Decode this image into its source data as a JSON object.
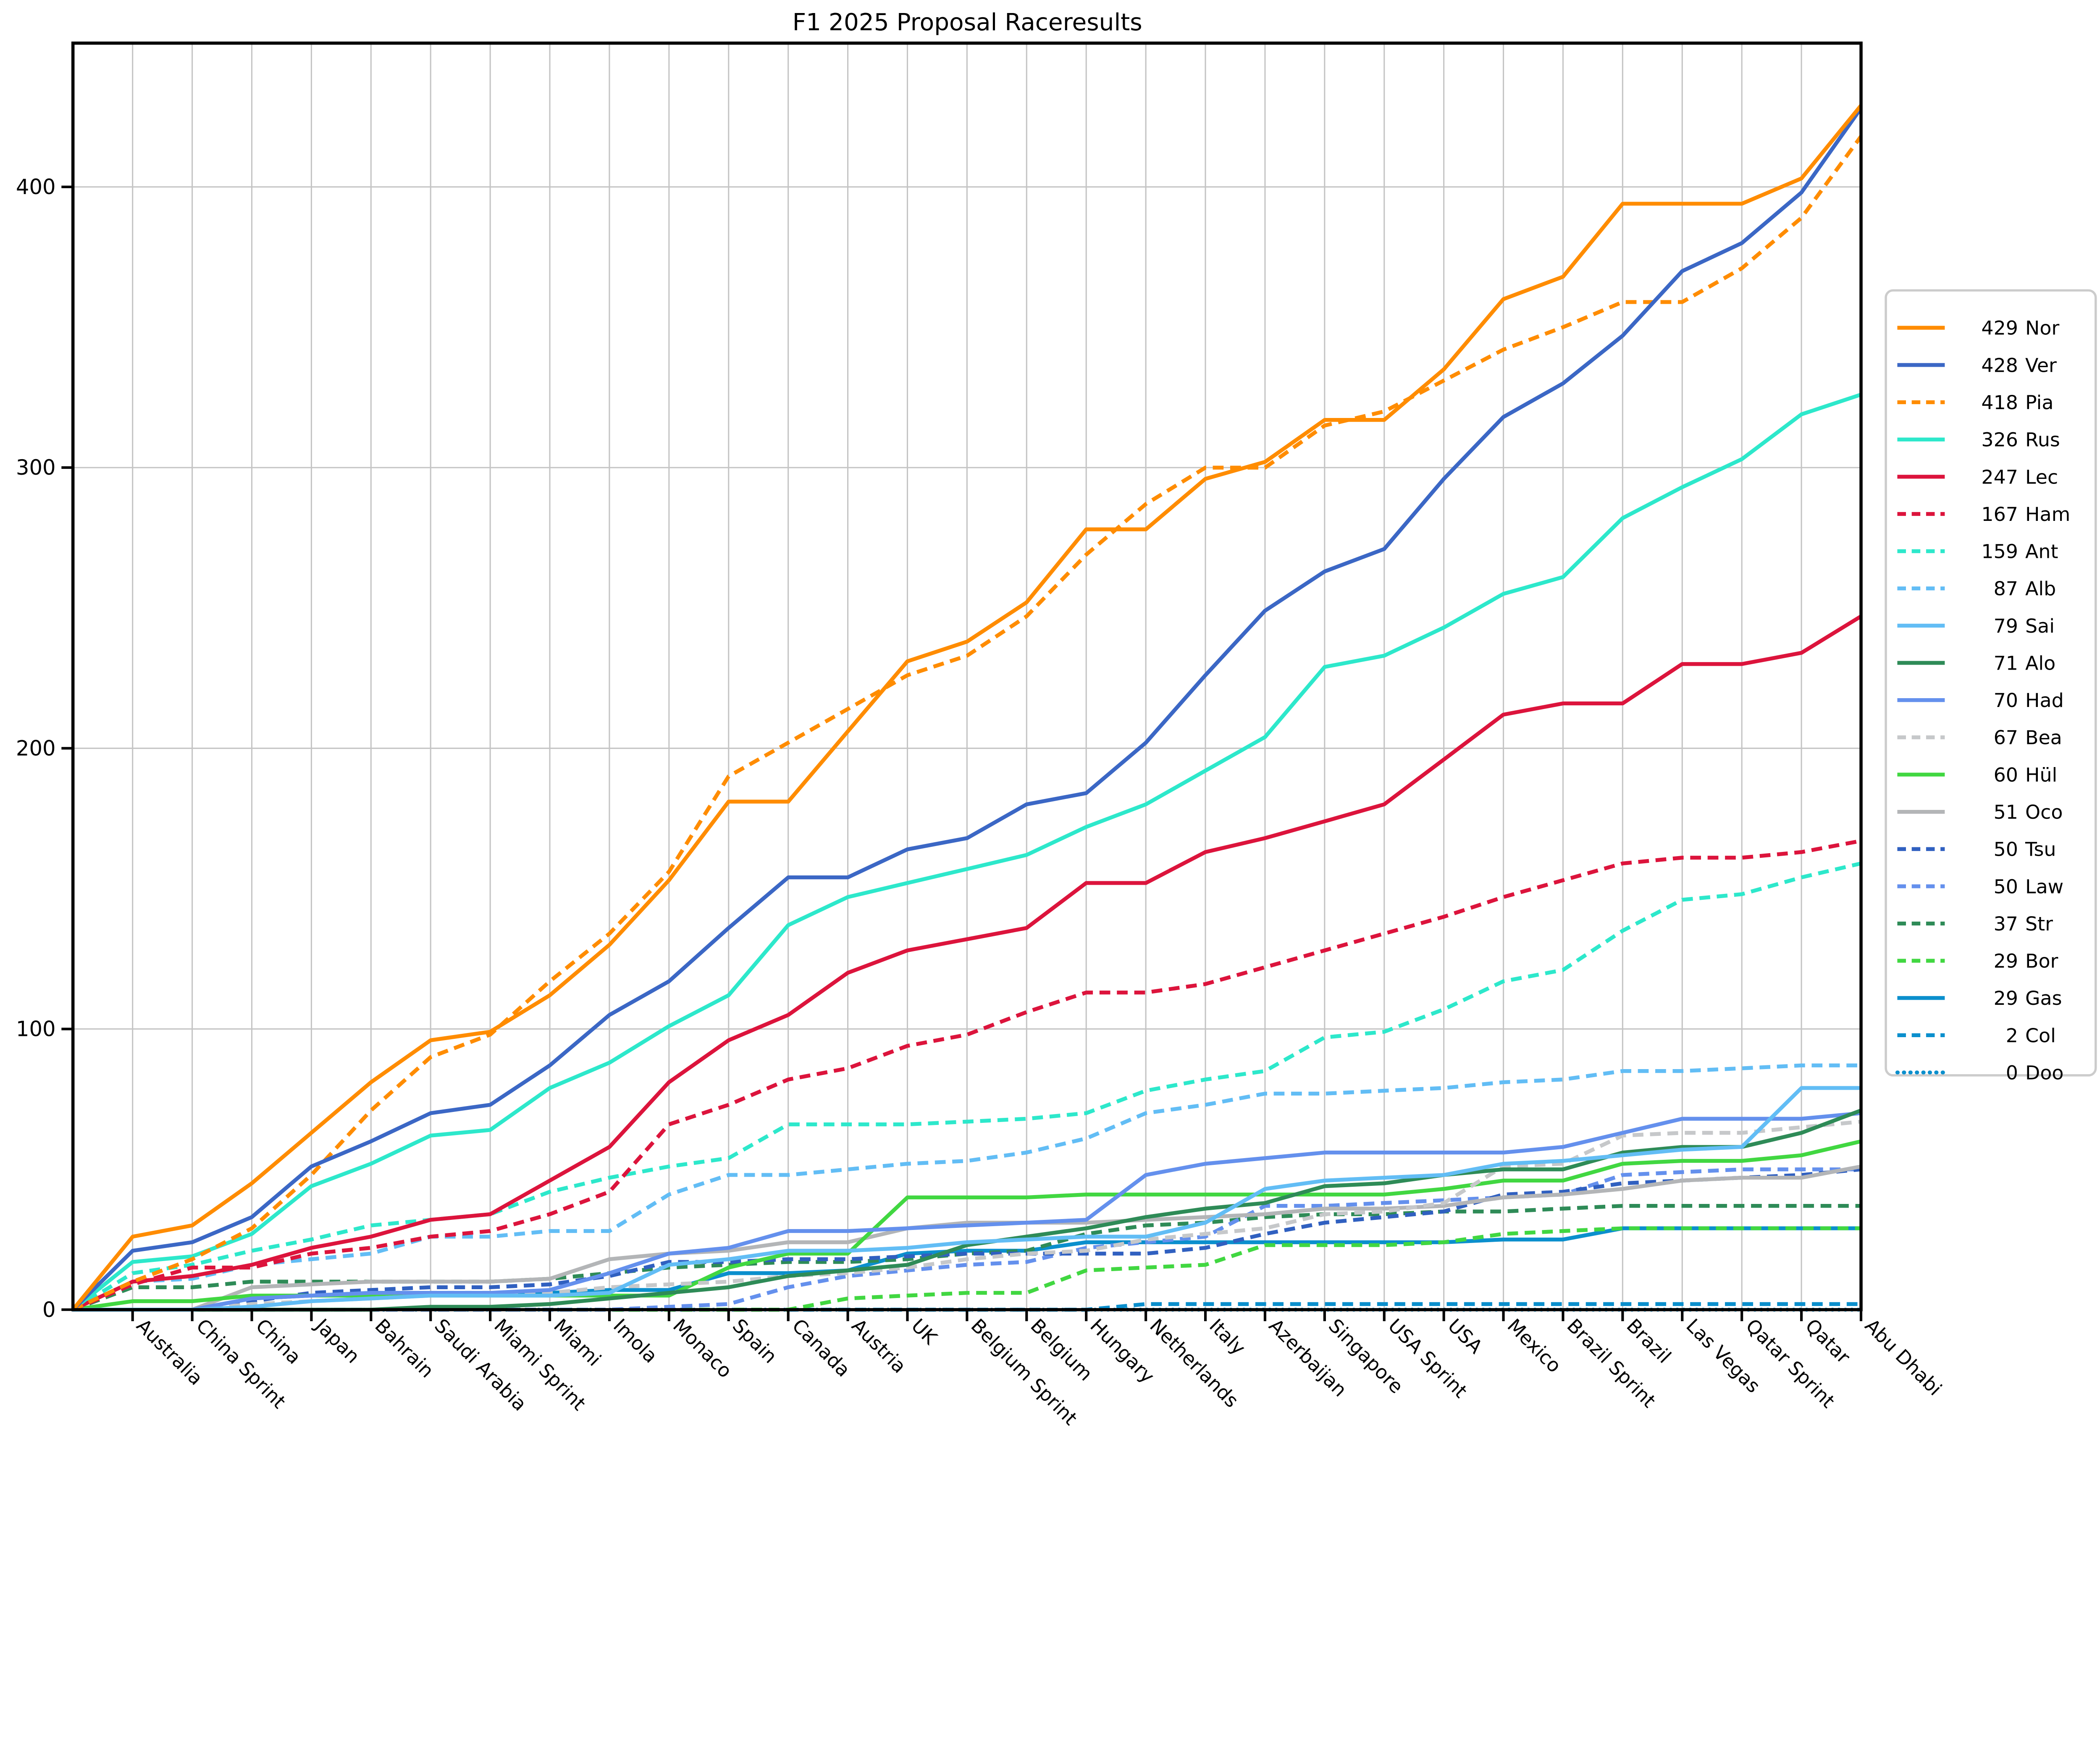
{
  "title": "F1 2025 Proposal Raceresults",
  "chart_data": {
    "type": "line",
    "title": "F1 2025 Proposal Raceresults",
    "xlabel": "",
    "ylabel": "",
    "ylim": [
      0,
      451
    ],
    "yticks": [
      0,
      100,
      200,
      300,
      400
    ],
    "grid": true,
    "legend_position": "center right",
    "x_tick_rotation": 45,
    "categories": [
      "Australia",
      "China Sprint",
      "China",
      "Japan",
      "Bahrain",
      "Saudi Arabia",
      "Miami Sprint",
      "Miami",
      "Imola",
      "Monaco",
      "Spain",
      "Canada",
      "Austria",
      "UK",
      "Belgium Sprint",
      "Belgium",
      "Hungary",
      "Netherlands",
      "Italy",
      "Azerbaijan",
      "Singapore",
      "USA Sprint",
      "USA",
      "Mexico",
      "Brazil Sprint",
      "Brazil",
      "Las Vegas",
      "Qatar Sprint",
      "Qatar",
      "Abu Dhabi"
    ],
    "starts_at_origin_zero": true,
    "series": [
      {
        "name": "Nor",
        "total": "429",
        "legend_label": "429 Nor",
        "color": "#ff8c00",
        "style": "solid",
        "values": [
          26,
          30,
          45,
          63,
          81,
          96,
          99,
          112,
          130,
          153,
          181,
          181,
          206,
          231,
          238,
          252,
          278,
          278,
          296,
          302,
          317,
          317,
          335,
          360,
          368,
          394,
          394,
          394,
          403,
          429
        ]
      },
      {
        "name": "Ver",
        "total": "428",
        "legend_label": "428 Ver",
        "color": "#3b67c5",
        "style": "solid",
        "values": [
          21,
          24,
          33,
          51,
          60,
          70,
          73,
          87,
          105,
          117,
          136,
          154,
          154,
          164,
          168,
          180,
          184,
          202,
          226,
          249,
          263,
          271,
          296,
          318,
          330,
          347,
          370,
          380,
          398,
          428
        ]
      },
      {
        "name": "Pia",
        "total": "418",
        "legend_label": "418 Pia",
        "color": "#ff8c00",
        "style": "dashed",
        "values": [
          10,
          18,
          29,
          48,
          71,
          90,
          98,
          117,
          134,
          156,
          190,
          202,
          214,
          226,
          233,
          247,
          269,
          287,
          300,
          300,
          315,
          320,
          331,
          342,
          350,
          359,
          359,
          371,
          389,
          418
        ]
      },
      {
        "name": "Rus",
        "total": "326",
        "legend_label": "326 Rus",
        "color": "#2de8cb",
        "style": "solid",
        "values": [
          17,
          19,
          27,
          44,
          52,
          62,
          64,
          79,
          88,
          101,
          112,
          137,
          147,
          152,
          157,
          162,
          172,
          180,
          192,
          204,
          229,
          233,
          243,
          255,
          261,
          282,
          293,
          303,
          319,
          326
        ]
      },
      {
        "name": "Lec",
        "total": "247",
        "legend_label": "247 Lec",
        "color": "#dc143c",
        "style": "solid",
        "values": [
          10,
          12,
          16,
          22,
          26,
          32,
          34,
          46,
          58,
          81,
          96,
          105,
          120,
          128,
          132,
          136,
          152,
          152,
          163,
          168,
          174,
          180,
          196,
          212,
          216,
          216,
          230,
          230,
          234,
          247
        ]
      },
      {
        "name": "Ham",
        "total": "167",
        "legend_label": "167 Ham",
        "color": "#dc143c",
        "style": "dashed",
        "values": [
          9,
          15,
          15,
          20,
          22,
          26,
          28,
          34,
          42,
          66,
          73,
          82,
          86,
          94,
          98,
          106,
          113,
          113,
          116,
          122,
          128,
          134,
          140,
          147,
          153,
          159,
          161,
          161,
          163,
          167
        ]
      },
      {
        "name": "Ant",
        "total": "159",
        "legend_label": "159 Ant",
        "color": "#2de8cb",
        "style": "dashed",
        "values": [
          13,
          16,
          21,
          25,
          30,
          32,
          34,
          42,
          47,
          51,
          54,
          66,
          66,
          66,
          67,
          68,
          70,
          78,
          82,
          85,
          97,
          99,
          107,
          117,
          121,
          135,
          146,
          148,
          154,
          159
        ]
      },
      {
        "name": "Alb",
        "total": "87",
        "legend_label": "87 Alb",
        "color": "#62bdf5",
        "style": "dashed",
        "values": [
          10,
          11,
          16,
          18,
          20,
          26,
          26,
          28,
          28,
          41,
          48,
          48,
          50,
          52,
          53,
          56,
          61,
          70,
          73,
          77,
          77,
          78,
          79,
          81,
          82,
          85,
          85,
          86,
          87,
          87
        ]
      },
      {
        "name": "Sai",
        "total": "79",
        "legend_label": "79 Sai",
        "color": "#62bdf5",
        "style": "solid",
        "values": [
          0,
          0,
          1,
          3,
          4,
          5,
          5,
          5,
          6,
          16,
          18,
          21,
          21,
          22,
          24,
          25,
          26,
          26,
          31,
          43,
          46,
          47,
          48,
          52,
          53,
          55,
          57,
          58,
          79,
          79
        ]
      },
      {
        "name": "Alo",
        "total": "71",
        "legend_label": "71 Alo",
        "color": "#2e8b57",
        "style": "solid",
        "values": [
          0,
          0,
          0,
          0,
          0,
          1,
          1,
          2,
          4,
          6,
          8,
          12,
          14,
          16,
          23,
          26,
          29,
          33,
          36,
          38,
          44,
          45,
          48,
          50,
          50,
          56,
          58,
          58,
          63,
          71
        ]
      },
      {
        "name": "Had",
        "total": "70",
        "legend_label": "70 Had",
        "color": "#6490ed",
        "style": "solid",
        "values": [
          0,
          0,
          4,
          5,
          6,
          6,
          6,
          7,
          13,
          20,
          22,
          28,
          28,
          29,
          30,
          31,
          32,
          48,
          52,
          54,
          56,
          56,
          56,
          56,
          58,
          63,
          68,
          68,
          68,
          70
        ]
      },
      {
        "name": "Bea",
        "total": "67",
        "legend_label": "67 Bea",
        "color": "#c6c8ca",
        "style": "dashed",
        "values": [
          0,
          0,
          2,
          3,
          4,
          5,
          5,
          6,
          8,
          9,
          10,
          12,
          13,
          15,
          18,
          20,
          21,
          25,
          27,
          29,
          34,
          35,
          38,
          51,
          52,
          62,
          63,
          63,
          65,
          67
        ]
      },
      {
        "name": "Hül",
        "total": "60",
        "legend_label": "60 Hül",
        "color": "#41d741",
        "style": "solid",
        "values": [
          3,
          3,
          5,
          5,
          5,
          5,
          5,
          5,
          5,
          5,
          15,
          20,
          20,
          40,
          40,
          40,
          41,
          41,
          41,
          41,
          41,
          41,
          43,
          46,
          46,
          52,
          53,
          53,
          55,
          60
        ]
      },
      {
        "name": "Oco",
        "total": "51",
        "legend_label": "51 Oco",
        "color": "#b3b5b7",
        "style": "solid",
        "values": [
          0,
          0,
          8,
          9,
          10,
          10,
          10,
          11,
          18,
          20,
          21,
          24,
          24,
          29,
          31,
          31,
          31,
          32,
          33,
          34,
          36,
          36,
          37,
          40,
          41,
          43,
          46,
          47,
          47,
          51
        ]
      },
      {
        "name": "Tsu",
        "total": "50",
        "legend_label": "50 Tsu",
        "color": "#3060c0",
        "style": "dashed",
        "values": [
          0,
          0,
          3,
          6,
          7,
          8,
          8,
          9,
          12,
          17,
          17,
          18,
          18,
          19,
          20,
          20,
          20,
          20,
          22,
          27,
          31,
          33,
          35,
          41,
          42,
          45,
          46,
          47,
          48,
          50
        ]
      },
      {
        "name": "Law",
        "total": "50",
        "legend_label": "50 Law",
        "color": "#6490ed",
        "style": "dashed",
        "values": [
          0,
          0,
          0,
          0,
          0,
          0,
          0,
          0,
          0,
          1,
          2,
          8,
          12,
          14,
          16,
          17,
          22,
          24,
          26,
          37,
          37,
          38,
          39,
          40,
          41,
          48,
          49,
          50,
          50,
          50
        ]
      },
      {
        "name": "Str",
        "total": "37",
        "legend_label": "37 Str",
        "color": "#2e8b57",
        "style": "dashed",
        "values": [
          8,
          8,
          10,
          10,
          10,
          10,
          10,
          11,
          13,
          15,
          16,
          17,
          17,
          18,
          20,
          21,
          27,
          30,
          31,
          33,
          34,
          34,
          35,
          35,
          36,
          37,
          37,
          37,
          37,
          37
        ]
      },
      {
        "name": "Bor",
        "total": "29",
        "legend_label": "29 Bor",
        "color": "#41d741",
        "style": "dashed",
        "values": [
          0,
          0,
          0,
          0,
          0,
          0,
          0,
          0,
          0,
          0,
          0,
          0,
          4,
          5,
          6,
          6,
          14,
          15,
          16,
          23,
          23,
          23,
          24,
          27,
          28,
          29,
          29,
          29,
          29,
          29
        ]
      },
      {
        "name": "Gas",
        "total": "29",
        "legend_label": "29 Gas",
        "color": "#0b8fcd",
        "style": "solid",
        "values": [
          0,
          0,
          4,
          5,
          6,
          6,
          6,
          6,
          7,
          7,
          13,
          13,
          14,
          20,
          21,
          21,
          24,
          24,
          24,
          24,
          24,
          24,
          24,
          25,
          25,
          29,
          29,
          29,
          29,
          29
        ]
      },
      {
        "name": "Col",
        "total": "2",
        "legend_label": "2 Col",
        "color": "#0b8fcd",
        "style": "dashed",
        "values": [
          0,
          0,
          0,
          0,
          0,
          0,
          0,
          0,
          0,
          0,
          0,
          0,
          0,
          0,
          0,
          0,
          0,
          2,
          2,
          2,
          2,
          2,
          2,
          2,
          2,
          2,
          2,
          2,
          2,
          2
        ]
      },
      {
        "name": "Doo",
        "total": "0",
        "legend_label": "0 Doo",
        "color": "#0b8fcd",
        "style": "dotted",
        "values": [
          0,
          0,
          0,
          0,
          0,
          0,
          0,
          0,
          0,
          0,
          0,
          0,
          0,
          0,
          0,
          0,
          0,
          0,
          0,
          0,
          0,
          0,
          0,
          0,
          0,
          0,
          0,
          0,
          0,
          0
        ]
      }
    ]
  }
}
